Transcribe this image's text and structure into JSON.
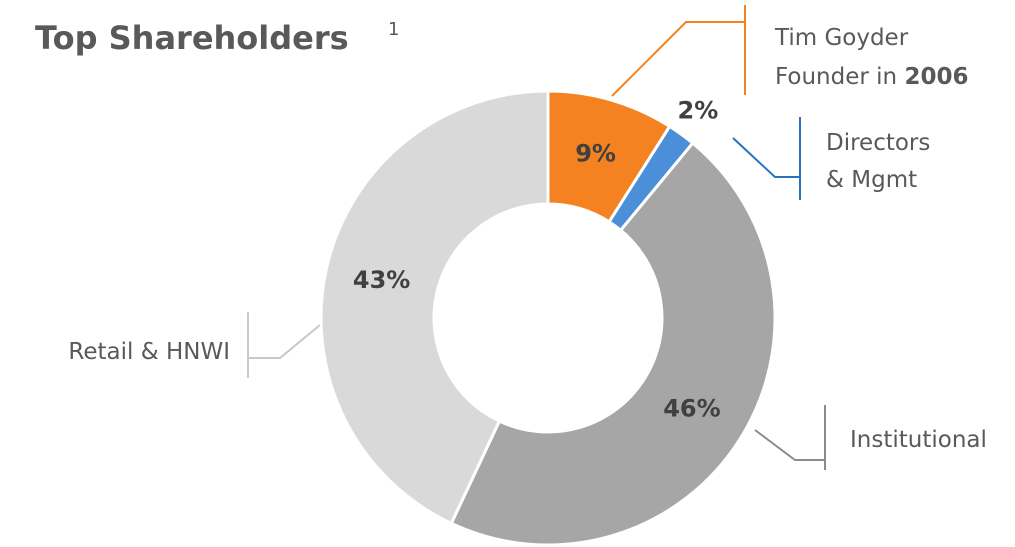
{
  "chart_data": {
    "type": "donut",
    "title": "Top Shareholders",
    "title_superscript": "1",
    "categories": [
      [
        [
          "Tim Goyder"
        ],
        [
          "Founder in ",
          {
            "text": "2006",
            "bold": true
          }
        ]
      ],
      [
        [
          "Directors"
        ],
        [
          "& Mgmt"
        ]
      ],
      [
        [
          "Institutional"
        ]
      ],
      [
        [
          "Retail & HNWI"
        ]
      ]
    ],
    "values": [
      9,
      2,
      46,
      43
    ],
    "value_labels": [
      "9%",
      "2%",
      "46%",
      "43%"
    ],
    "colors": [
      "#f58220",
      "#4a8fd8",
      "#a6a6a6",
      "#d9d9d9"
    ],
    "start_angle": 0,
    "direction": "clockwise"
  }
}
